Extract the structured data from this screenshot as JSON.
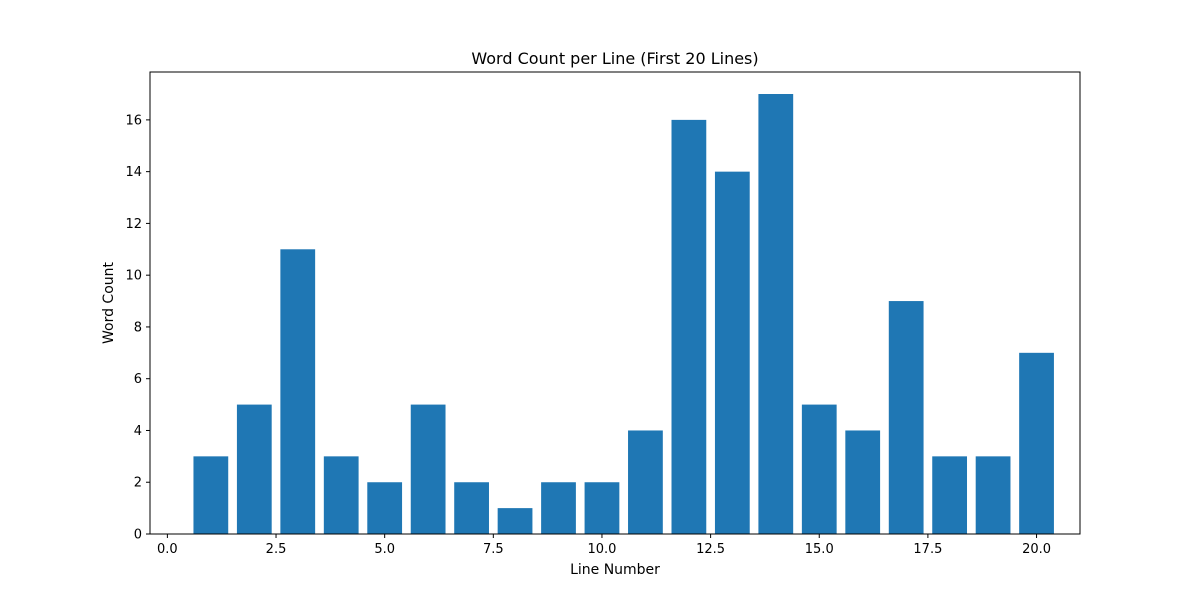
{
  "chart_data": {
    "type": "bar",
    "title": "Word Count per Line (First 20 Lines)",
    "xlabel": "Line Number",
    "ylabel": "Word Count",
    "x": [
      1,
      2,
      3,
      4,
      5,
      6,
      7,
      8,
      9,
      10,
      11,
      12,
      13,
      14,
      15,
      16,
      17,
      18,
      19,
      20
    ],
    "values": [
      3,
      5,
      11,
      3,
      2,
      5,
      2,
      1,
      2,
      2,
      4,
      16,
      14,
      17,
      5,
      4,
      9,
      3,
      3,
      7
    ],
    "bar_color": "#1f77b4",
    "xlim": [
      -0.4,
      21.0
    ],
    "ylim": [
      0,
      17.85
    ],
    "xticks": [
      0.0,
      2.5,
      5.0,
      7.5,
      10.0,
      12.5,
      15.0,
      17.5,
      20.0
    ],
    "xtick_labels": [
      "0.0",
      "2.5",
      "5.0",
      "7.5",
      "10.0",
      "12.5",
      "15.0",
      "17.5",
      "20.0"
    ],
    "yticks": [
      0,
      2,
      4,
      6,
      8,
      10,
      12,
      14,
      16
    ],
    "ytick_labels": [
      "0",
      "2",
      "4",
      "6",
      "8",
      "10",
      "12",
      "14",
      "16"
    ],
    "grid": false,
    "legend": "none"
  }
}
